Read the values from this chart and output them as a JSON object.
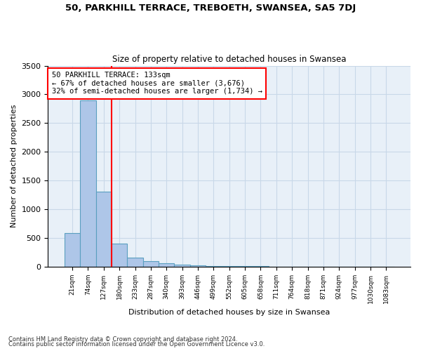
{
  "title1": "50, PARKHILL TERRACE, TREBOETH, SWANSEA, SA5 7DJ",
  "title2": "Size of property relative to detached houses in Swansea",
  "xlabel": "Distribution of detached houses by size in Swansea",
  "ylabel": "Number of detached properties",
  "footnote1": "Contains HM Land Registry data © Crown copyright and database right 2024.",
  "footnote2": "Contains public sector information licensed under the Open Government Licence v3.0.",
  "bin_labels": [
    "21sqm",
    "74sqm",
    "127sqm",
    "180sqm",
    "233sqm",
    "287sqm",
    "340sqm",
    "393sqm",
    "446sqm",
    "499sqm",
    "552sqm",
    "605sqm",
    "658sqm",
    "711sqm",
    "764sqm",
    "818sqm",
    "871sqm",
    "924sqm",
    "977sqm",
    "1030sqm",
    "1083sqm"
  ],
  "bar_values": [
    580,
    2900,
    1300,
    400,
    155,
    90,
    60,
    40,
    20,
    12,
    7,
    5,
    4,
    3,
    2,
    2,
    1,
    1,
    1,
    1,
    0
  ],
  "bar_color": "#aec6e8",
  "bar_edge_color": "#5a9fc0",
  "grid_color": "#c8d8e8",
  "background_color": "#e8f0f8",
  "property_line_index": 2,
  "annotation_text1": "50 PARKHILL TERRACE: 133sqm",
  "annotation_text2": "← 67% of detached houses are smaller (3,676)",
  "annotation_text3": "32% of semi-detached houses are larger (1,734) →",
  "annotation_box_color": "white",
  "annotation_box_edge": "red",
  "vline_color": "red",
  "ylim": [
    0,
    3500
  ],
  "yticks": [
    0,
    500,
    1000,
    1500,
    2000,
    2500,
    3000,
    3500
  ]
}
